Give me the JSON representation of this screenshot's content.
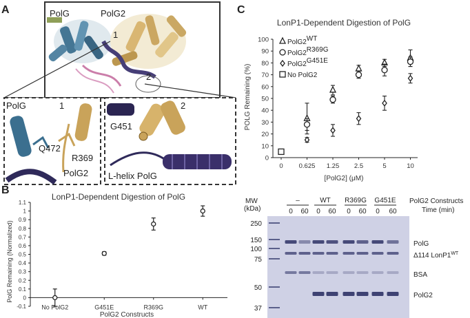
{
  "panels": {
    "a": {
      "letter": "A",
      "overview_labels": [
        "PolG",
        "PolG2",
        "1",
        "2"
      ],
      "inset1_labels": [
        "PolG",
        "1",
        "Q472",
        "R369",
        "PolG2"
      ],
      "inset2_labels": [
        "2",
        "G451",
        "L-helix PolG"
      ]
    },
    "b": {
      "letter": "B"
    },
    "c": {
      "letter": "C"
    }
  },
  "chart_data": [
    {
      "id": "b",
      "type": "scatter",
      "title": "LonP1-Dependent Digestion of PolG",
      "xlabel": "PolG2 Constructs",
      "ylabel": "PolG Remaining (Normalized)",
      "categories": [
        "No PolG2",
        "G451E",
        "R369G",
        "WT"
      ],
      "values": [
        0,
        0.51,
        0.85,
        1.0
      ],
      "errors": [
        0.1,
        0.02,
        0.07,
        0.06
      ],
      "yticks": [
        "-0.1",
        "0",
        "0.1",
        "0.2",
        "0.3",
        "0.4",
        "0.5",
        "0.6",
        "0.7",
        "0.8",
        "0.9",
        "1",
        "1.1"
      ],
      "ylim": [
        -0.1,
        1.1
      ]
    },
    {
      "id": "c",
      "type": "scatter",
      "title": "LonP1-Dependent Digestion of PolG",
      "xlabel": "[PolG2] (μM)",
      "ylabel": "POLG Remaining (%)",
      "categories": [
        "0",
        "0.625",
        "1.25",
        "2.5",
        "5",
        "10"
      ],
      "yticks": [
        "0",
        "10",
        "20",
        "30",
        "40",
        "50",
        "60",
        "70",
        "80",
        "90",
        "100"
      ],
      "ylim": [
        0,
        100
      ],
      "legend": [
        {
          "marker": "triangle",
          "label": "PolG2",
          "sup": "WT"
        },
        {
          "marker": "circle",
          "label": "PolG2",
          "sup": "R369G"
        },
        {
          "marker": "diamond",
          "label": "PolG2",
          "sup": "G451E"
        },
        {
          "marker": "square",
          "label": "No PolG2",
          "sup": ""
        }
      ],
      "series": [
        {
          "name": "PolG2 WT",
          "marker": "triangle",
          "values": [
            null,
            33,
            57,
            75,
            80,
            84
          ],
          "errors": [
            0,
            13,
            4,
            3,
            3,
            7
          ]
        },
        {
          "name": "PolG2 R369G",
          "marker": "circle",
          "values": [
            null,
            28,
            49,
            70,
            74,
            81
          ],
          "errors": [
            0,
            5,
            3,
            3,
            5,
            4
          ]
        },
        {
          "name": "PolG2 G451E",
          "marker": "diamond",
          "values": [
            null,
            15,
            23,
            33,
            46,
            67
          ],
          "errors": [
            0,
            2,
            5,
            5,
            6,
            4
          ]
        },
        {
          "name": "No PolG2",
          "marker": "square",
          "values": [
            5,
            null,
            null,
            null,
            null,
            null
          ],
          "errors": [
            0,
            0,
            0,
            0,
            0,
            0
          ]
        }
      ]
    }
  ],
  "gel": {
    "mw_header": "MW",
    "kda_header": "(kDa)",
    "mw_markers": [
      "250",
      "150",
      "100",
      "75",
      "50",
      "37"
    ],
    "groups": [
      "–",
      "WT",
      "R369G",
      "G451E"
    ],
    "constructs_label": "PolG2 Constructs",
    "time_label": "Time (min)",
    "lane_times": [
      "0",
      "60",
      "0",
      "60",
      "0",
      "60",
      "0",
      "60"
    ],
    "band_labels": {
      "polg": "PolG",
      "lonp1": "Δ114 LonP1",
      "lonp1_sup": "WT",
      "bsa": "BSA",
      "polg2": "PolG2"
    }
  }
}
